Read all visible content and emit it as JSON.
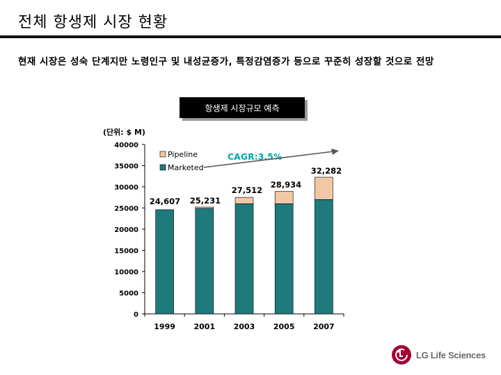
{
  "page": {
    "title": "전체 항생제 시장 현황",
    "subtitle": "현재 시장은 성숙 단계지만 노령인구 및 내성균증가, 특정감염증가 등으로 꾸준히 성장할 것으로 전망",
    "chart_box_label": "항생제 시장규모 예측",
    "logo_text": "LG Life Sciences"
  },
  "colors": {
    "marketed": "#1f7a7c",
    "pipeline": "#f2c7a4",
    "cagr": "#00a8a8",
    "arrow": "#555555"
  },
  "chart_data": {
    "type": "bar",
    "stacked": true,
    "unit_label": "(단위: $ M)",
    "categories": [
      "1999",
      "2001",
      "2003",
      "2005",
      "2007"
    ],
    "series": [
      {
        "name": "Marketed",
        "values": [
          24607,
          24900,
          26000,
          26000,
          27000
        ]
      },
      {
        "name": "Pipeline",
        "values": [
          0,
          331,
          1512,
          2934,
          5282
        ]
      }
    ],
    "totals": [
      "24,607",
      "25,231",
      "27,512",
      "28,934",
      "32,282"
    ],
    "ylim": [
      0,
      40000
    ],
    "yticks": [
      0,
      5000,
      10000,
      15000,
      20000,
      25000,
      30000,
      35000,
      40000
    ],
    "legend": [
      "Pipeline",
      "Marketed"
    ],
    "annotation": "CAGR:3.5%"
  }
}
